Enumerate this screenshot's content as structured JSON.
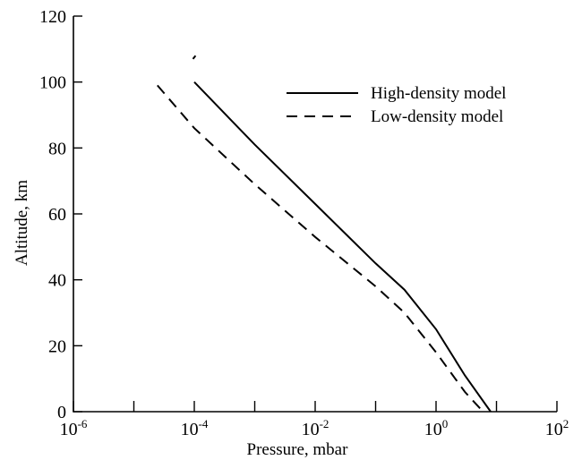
{
  "chart_data": {
    "type": "line",
    "title": "",
    "xlabel": "Pressure, mbar",
    "ylabel": "Altitude, km",
    "x_scale": "log",
    "xlim": [
      1e-06,
      100
    ],
    "ylim": [
      0,
      120
    ],
    "x_ticks": [
      {
        "value": 1e-06,
        "base": "10",
        "exp": "-6"
      },
      {
        "value": 0.0001,
        "base": "10",
        "exp": "-4"
      },
      {
        "value": 0.01,
        "base": "10",
        "exp": "-2"
      },
      {
        "value": 1,
        "base": "10",
        "exp": "0"
      },
      {
        "value": 100,
        "base": "10",
        "exp": "2"
      }
    ],
    "x_minor_ticks": [
      1e-05,
      0.001,
      0.1,
      10
    ],
    "y_ticks": [
      0,
      20,
      40,
      60,
      80,
      100,
      120
    ],
    "grid": false,
    "legend_position": "top-right",
    "series": [
      {
        "name": "High-density model",
        "style": "solid",
        "color": "#000000",
        "points": [
          {
            "x": 0.0001,
            "y": 100
          },
          {
            "x": 0.001,
            "y": 81
          },
          {
            "x": 0.01,
            "y": 63
          },
          {
            "x": 0.1,
            "y": 45
          },
          {
            "x": 0.3,
            "y": 37
          },
          {
            "x": 1,
            "y": 25
          },
          {
            "x": 3,
            "y": 11
          },
          {
            "x": 8,
            "y": 0
          }
        ],
        "extra_points": [
          {
            "x": 9.5e-05,
            "y": 107
          },
          {
            "x": 0.000105,
            "y": 108
          }
        ]
      },
      {
        "name": "Low-density model",
        "style": "dashed",
        "color": "#000000",
        "points": [
          {
            "x": 2.45e-05,
            "y": 99
          },
          {
            "x": 0.0001,
            "y": 86
          },
          {
            "x": 0.001,
            "y": 69
          },
          {
            "x": 0.01,
            "y": 53
          },
          {
            "x": 0.1,
            "y": 38
          },
          {
            "x": 0.3,
            "y": 30
          },
          {
            "x": 1,
            "y": 18
          },
          {
            "x": 3,
            "y": 6
          },
          {
            "x": 6,
            "y": 0
          }
        ]
      }
    ]
  }
}
